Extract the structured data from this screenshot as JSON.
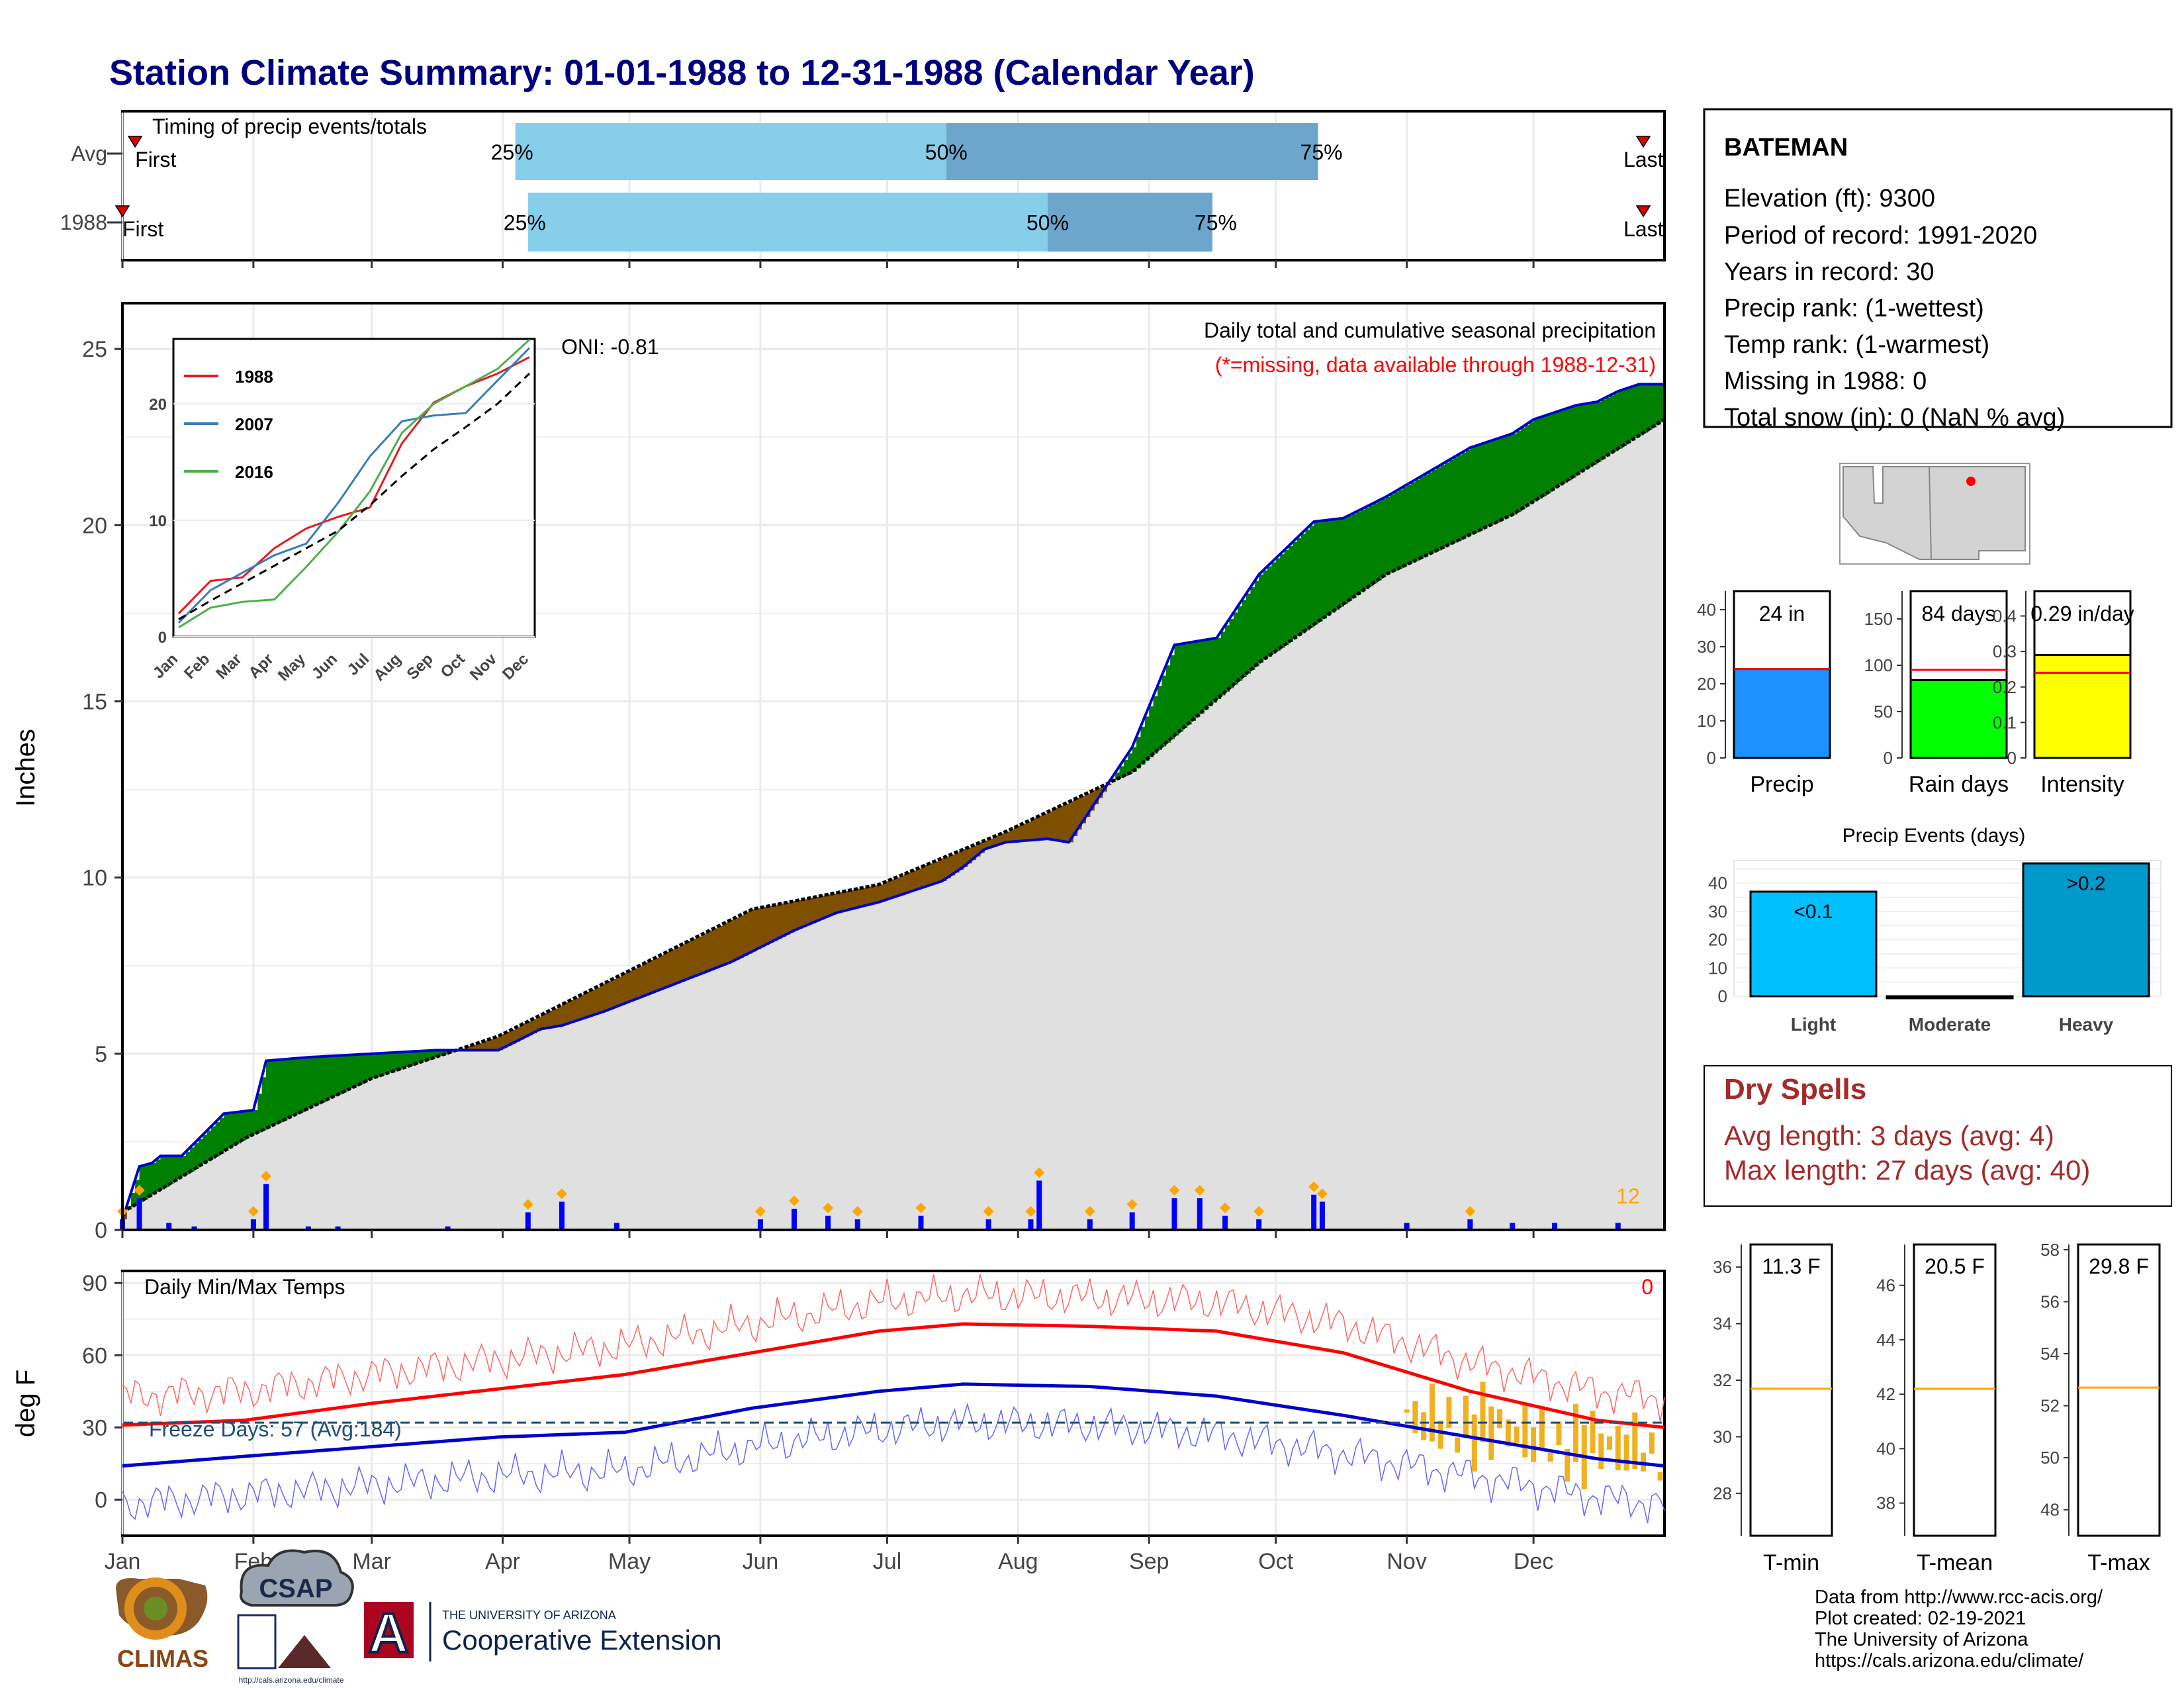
{
  "title": "Station Climate Summary: 01-01-1988 to 12-31-1988 (Calendar Year)",
  "timing": {
    "label": "Timing of precip events/totals",
    "rows": [
      {
        "name": "Avg",
        "first": "First",
        "last": "Last",
        "q25": "25%",
        "q50": "50%",
        "q75": "75%",
        "q25_day": 94,
        "q50_day": 196,
        "q75_day": 284,
        "first_day": 4,
        "last_day": 361
      },
      {
        "name": "1988",
        "first": "First",
        "last": "Last",
        "q25": "25%",
        "q50": "50%",
        "q75": "75%",
        "q25_day": 97,
        "q50_day": 220,
        "q75_day": 259,
        "first_day": 1,
        "last_day": 361
      }
    ]
  },
  "months": [
    "Jan",
    "Feb",
    "Mar",
    "Apr",
    "May",
    "Jun",
    "Jul",
    "Aug",
    "Sep",
    "Oct",
    "Nov",
    "Dec"
  ],
  "precip": {
    "ylabel": "Inches",
    "title": "Daily total and cumulative seasonal precipitation",
    "missing_note": "(*=missing, data available through 1988-12-31)",
    "oni": "ONI: -0.81",
    "count_label": "12",
    "yticks": [
      0,
      5,
      10,
      15,
      20,
      25
    ]
  },
  "chart_data": [
    {
      "type": "area",
      "title": "Daily total and cumulative seasonal precipitation",
      "ylabel": "Inches",
      "ylim": [
        0,
        26
      ],
      "x_unit": "day of year",
      "series": [
        {
          "name": "1988",
          "x": [
            1,
            5,
            8,
            10,
            15,
            25,
            32,
            35,
            45,
            60,
            75,
            90,
            100,
            105,
            115,
            130,
            145,
            155,
            160,
            170,
            180,
            190,
            195,
            200,
            205,
            210,
            220,
            225,
            240,
            250,
            260,
            270,
            283,
            290,
            300,
            310,
            320,
            330,
            335,
            345,
            350,
            355,
            360,
            366
          ],
          "y": [
            0.3,
            1.8,
            1.9,
            2.1,
            2.1,
            3.3,
            3.4,
            4.8,
            4.9,
            5.0,
            5.1,
            5.1,
            5.7,
            5.8,
            6.2,
            6.9,
            7.6,
            8.2,
            8.5,
            9.0,
            9.3,
            9.7,
            9.9,
            10.3,
            10.8,
            11.0,
            11.1,
            11.0,
            13.7,
            16.6,
            16.8,
            18.6,
            20.1,
            20.2,
            20.8,
            21.5,
            22.2,
            22.6,
            23.0,
            23.4,
            23.5,
            23.8,
            24.0,
            24.0
          ]
        },
        {
          "name": "Avg",
          "x": [
            1,
            30,
            60,
            90,
            120,
            150,
            180,
            210,
            240,
            270,
            300,
            330,
            366
          ],
          "y": [
            0.5,
            2.6,
            4.3,
            5.5,
            7.3,
            9.1,
            9.8,
            11.3,
            13.0,
            16.1,
            18.6,
            20.3,
            23.0
          ]
        }
      ],
      "daily_bars": [
        [
          1,
          0.3
        ],
        [
          5,
          0.9
        ],
        [
          12,
          0.2
        ],
        [
          18,
          0.1
        ],
        [
          32,
          0.3
        ],
        [
          35,
          1.3
        ],
        [
          45,
          0.1
        ],
        [
          52,
          0.1
        ],
        [
          78,
          0.1
        ],
        [
          97,
          0.5
        ],
        [
          105,
          0.8
        ],
        [
          118,
          0.2
        ],
        [
          152,
          0.3
        ],
        [
          160,
          0.6
        ],
        [
          168,
          0.4
        ],
        [
          175,
          0.3
        ],
        [
          190,
          0.4
        ],
        [
          206,
          0.3
        ],
        [
          216,
          0.3
        ],
        [
          218,
          1.4
        ],
        [
          230,
          0.3
        ],
        [
          240,
          0.5
        ],
        [
          250,
          0.9
        ],
        [
          256,
          0.9
        ],
        [
          262,
          0.4
        ],
        [
          270,
          0.3
        ],
        [
          283,
          1.0
        ],
        [
          285,
          0.8
        ],
        [
          305,
          0.2
        ],
        [
          320,
          0.3
        ],
        [
          330,
          0.2
        ],
        [
          340,
          0.2
        ],
        [
          355,
          0.2
        ]
      ]
    },
    {
      "type": "line",
      "title": "",
      "xlabel": "",
      "ylim": [
        0,
        25
      ],
      "categories": [
        "Jan",
        "Feb",
        "Mar",
        "Apr",
        "May",
        "Jun",
        "Jul",
        "Aug",
        "Sep",
        "Oct",
        "Nov",
        "Dec"
      ],
      "series": [
        {
          "name": "1988",
          "color": "#e41a1c",
          "values": [
            2.0,
            4.8,
            5.1,
            7.6,
            9.3,
            10.3,
            11.1,
            16.6,
            20.1,
            21.5,
            22.6,
            24.0
          ]
        },
        {
          "name": "2007",
          "color": "#377eb8",
          "values": [
            1.2,
            4.0,
            5.5,
            7.0,
            8.0,
            11.5,
            15.5,
            18.5,
            19.0,
            19.2,
            22.0,
            24.8
          ]
        },
        {
          "name": "2016",
          "color": "#4daf4a",
          "values": [
            0.8,
            2.5,
            3.0,
            3.2,
            6.0,
            9.0,
            12.5,
            17.5,
            20.0,
            21.5,
            23.0,
            25.5
          ]
        },
        {
          "name": "Avg",
          "color": "#000000",
          "values": [
            1.5,
            3.1,
            4.6,
            6.1,
            7.6,
            9.1,
            11.3,
            13.8,
            16.1,
            18.0,
            20.0,
            22.6
          ]
        }
      ]
    },
    {
      "type": "line",
      "title": "Daily Min/Max Temps",
      "ylabel": "deg F",
      "ylim": [
        -15,
        95
      ],
      "series": [
        {
          "name": "Normal Max",
          "color": "#ff0000",
          "x": [
            1,
            30,
            60,
            90,
            120,
            150,
            180,
            200,
            230,
            260,
            290,
            320,
            350,
            366
          ],
          "y": [
            31,
            33,
            40,
            46,
            52,
            61,
            70,
            73,
            72,
            70,
            61,
            45,
            33,
            30
          ]
        },
        {
          "name": "Normal Min",
          "color": "#0000ff",
          "x": [
            1,
            30,
            60,
            90,
            120,
            150,
            180,
            200,
            230,
            260,
            290,
            320,
            350,
            366
          ],
          "y": [
            14,
            18,
            22,
            26,
            28,
            38,
            45,
            48,
            47,
            43,
            35,
            26,
            17,
            14
          ]
        }
      ],
      "freeze_line": 32
    }
  ],
  "temps": {
    "title": "Daily Min/Max Temps",
    "ylabel": "deg F",
    "freeze_days": "Freeze Days: 57 (Avg:184)",
    "count_label": "0",
    "yticks": [
      0,
      30,
      60,
      90
    ]
  },
  "station": {
    "name": "BATEMAN",
    "lines": [
      "Elevation (ft): 9300",
      "Period of record: 1991-2020",
      "Years in record: 30",
      "Precip rank:  (1-wettest)",
      "Temp rank:  (1-warmest)",
      "Missing in 1988: 0",
      "Total snow (in): 0 (NaN % avg)"
    ]
  },
  "summary_bars": [
    {
      "label": "Precip",
      "value_text": "24 in",
      "value": 24,
      "avg": 24,
      "ylim": [
        0,
        45
      ],
      "ticks": [
        0,
        10,
        20,
        30,
        40
      ],
      "color": "#1e90ff"
    },
    {
      "label": "Rain days",
      "value_text": "84 days",
      "value": 84,
      "avg": 95,
      "ylim": [
        0,
        180
      ],
      "ticks": [
        0,
        50,
        100,
        150
      ],
      "color": "#00ff00"
    },
    {
      "label": "Intensity",
      "value_text": "0.29 in/day",
      "value": 0.29,
      "avg": 0.24,
      "ylim": [
        0,
        0.47
      ],
      "ticks": [
        0.0,
        0.1,
        0.2,
        0.3,
        0.4
      ],
      "color": "#ffff00"
    }
  ],
  "events": {
    "title": "Precip Events (days)",
    "ticks": [
      0,
      10,
      20,
      30,
      40
    ],
    "bars": [
      {
        "label": "Light",
        "value": 37,
        "text": "<0.1",
        "color": "#00bfff"
      },
      {
        "label": "Moderate",
        "value": 0,
        "text": "",
        "color": "#00bfff"
      },
      {
        "label": "Heavy",
        "value": 47,
        "text": ">0.2",
        "color": "#0099cc"
      }
    ]
  },
  "dry_spells": {
    "title": "Dry Spells",
    "avg": "Avg length: 3 days (avg: 4)",
    "max": "Max length: 27 days (avg: 40)"
  },
  "temp_boxes": [
    {
      "label": "T-min",
      "value_text": "11.3 F",
      "ticks": [
        28,
        30,
        32,
        34,
        36
      ],
      "ylim": [
        26.5,
        36.8
      ],
      "avg": 31.7
    },
    {
      "label": "T-mean",
      "value_text": "20.5 F",
      "ticks": [
        38,
        40,
        42,
        44,
        46
      ],
      "ylim": [
        36.8,
        47.5
      ],
      "avg": 42.2
    },
    {
      "label": "T-max",
      "value_text": "29.8 F",
      "ticks": [
        48,
        50,
        52,
        54,
        56,
        58
      ],
      "ylim": [
        47,
        58.2
      ],
      "avg": 52.7
    }
  ],
  "credits": [
    "Data from http://www.rcc-acis.org/",
    "Plot created: 02-19-2021",
    "The University of Arizona",
    "https://cals.arizona.edu/climate/"
  ],
  "logos": {
    "climas": "CLIMAS",
    "csap": "CSAP",
    "csap_url": "http://cals.arizona.edu/climate",
    "ua_small": "THE UNIVERSITY OF ARIZONA",
    "ua_big": "Cooperative Extension",
    "ua_letter": "A"
  },
  "colors": {
    "title": "#00007f",
    "above": "#008000",
    "below": "#7f4f00",
    "blue": "#0000cc",
    "normal": "#e0e0e0",
    "dry": "#a52a2a"
  }
}
